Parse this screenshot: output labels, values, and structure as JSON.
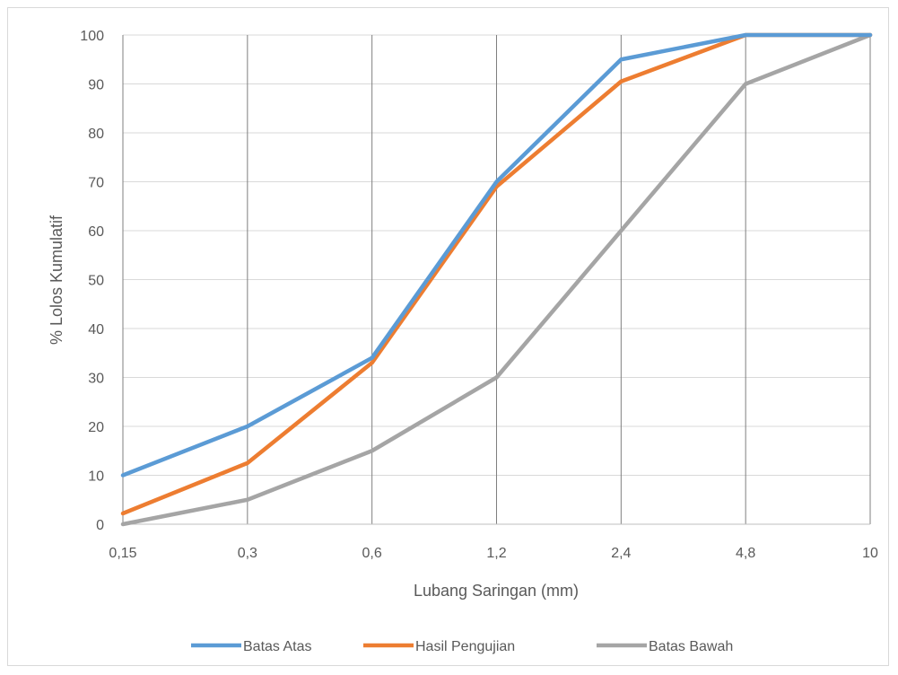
{
  "chart_data": {
    "type": "line",
    "title": "",
    "xlabel": "Lubang Saringan (mm)",
    "ylabel": "% Lolos Kumulatif",
    "categories": [
      "0,15",
      "0,3",
      "0,6",
      "1,2",
      "2,4",
      "4,8",
      "10"
    ],
    "yticks": [
      "0",
      "10",
      "20",
      "30",
      "40",
      "50",
      "60",
      "70",
      "80",
      "90",
      "100"
    ],
    "ylim": [
      0,
      100
    ],
    "grid": true,
    "legend_position": "bottom",
    "series": [
      {
        "name": "Batas Atas",
        "color": "#5b9bd5",
        "values": [
          10,
          20,
          34,
          70,
          95,
          100,
          100
        ]
      },
      {
        "name": "Hasil Pengujian",
        "color": "#ed7d31",
        "values": [
          2.2,
          12.5,
          33,
          69,
          90.5,
          100,
          100
        ]
      },
      {
        "name": "Batas Bawah",
        "color": "#a5a5a5",
        "values": [
          0,
          5,
          15,
          30,
          60,
          90,
          100
        ]
      }
    ]
  }
}
